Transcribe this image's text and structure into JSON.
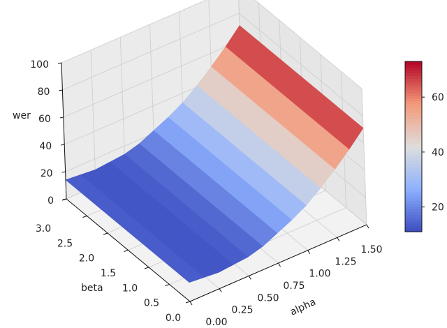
{
  "chart_data": {
    "type": "surface3d",
    "xlabel": "alpha",
    "ylabel": "beta",
    "zlabel": "wer",
    "xlim": [
      0,
      1.5
    ],
    "ylim": [
      0,
      3.0
    ],
    "zlim": [
      0,
      100
    ],
    "xticks": [
      "0.00",
      "0.25",
      "0.50",
      "0.75",
      "1.00",
      "1.25",
      "1.50"
    ],
    "yticks": [
      "0.0",
      "0.5",
      "1.0",
      "1.5",
      "2.0",
      "2.5",
      "3.0"
    ],
    "zticks": [
      "0",
      "20",
      "40",
      "60",
      "80",
      "100"
    ],
    "alpha": [
      0,
      0.125,
      0.25,
      0.375,
      0.5,
      0.625,
      0.75,
      0.875,
      1.0,
      1.125,
      1.25,
      1.375,
      1.5
    ],
    "beta": [
      0,
      0.5,
      1.0,
      1.5,
      2.0,
      2.5,
      3.0
    ],
    "z_by_alpha": [
      14,
      13,
      12,
      13,
      14,
      17,
      22,
      27,
      33,
      41,
      50,
      60,
      71
    ],
    "colormap": "coolwarm",
    "colorbar": {
      "range": [
        11,
        73
      ],
      "ticks": [
        "20",
        "40",
        "60"
      ]
    },
    "grid": true
  }
}
